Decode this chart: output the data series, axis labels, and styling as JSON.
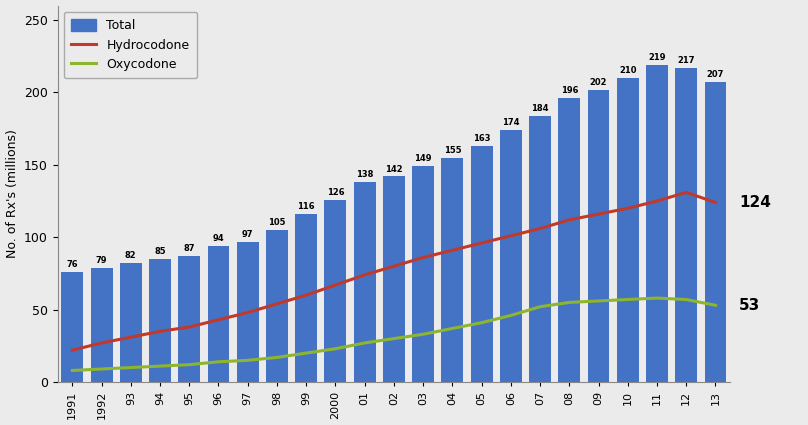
{
  "years": [
    "1991",
    "1992",
    "93",
    "94",
    "95",
    "96",
    "97",
    "98",
    "99",
    "2000",
    "01",
    "02",
    "03",
    "04",
    "05",
    "06",
    "07",
    "08",
    "09",
    "10",
    "11",
    "12",
    "13"
  ],
  "total": [
    76,
    79,
    82,
    85,
    87,
    94,
    97,
    105,
    116,
    126,
    138,
    142,
    149,
    155,
    163,
    174,
    184,
    196,
    202,
    210,
    219,
    217,
    207
  ],
  "hydrocodone": [
    22,
    27,
    31,
    35,
    38,
    43,
    48,
    54,
    60,
    67,
    74,
    80,
    86,
    91,
    96,
    101,
    106,
    112,
    116,
    120,
    125,
    131,
    124
  ],
  "oxycodone": [
    8,
    9,
    10,
    11,
    12,
    14,
    15,
    17,
    20,
    23,
    27,
    30,
    33,
    37,
    41,
    46,
    52,
    55,
    56,
    57,
    58,
    57,
    53
  ],
  "bar_color": "#4472C4",
  "hydro_color": "#C0392B",
  "oxy_color": "#8DB52E",
  "background_color": "#EBEBEB",
  "ylabel": "No. of Rx's (millions)",
  "ylim": [
    0,
    260
  ],
  "yticks": [
    0,
    50,
    100,
    150,
    200,
    250
  ],
  "hydro_label_value": "124",
  "oxy_label_value": "53",
  "legend_total": "Total",
  "legend_hydro": "Hydrocodone",
  "legend_oxy": "Oxycodone"
}
